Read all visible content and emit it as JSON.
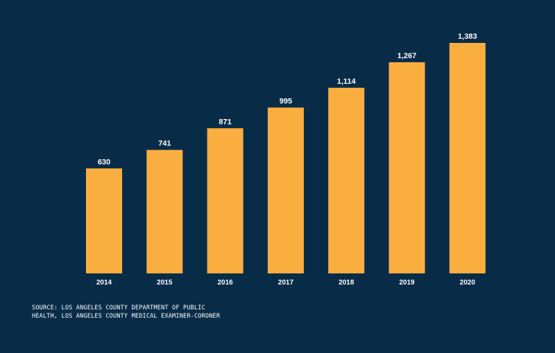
{
  "colors": {
    "background": "#082c48",
    "bar": "#fbae40",
    "text": "#ffffff"
  },
  "chart_data": {
    "type": "bar",
    "categories": [
      "2014",
      "2015",
      "2016",
      "2017",
      "2018",
      "2019",
      "2020"
    ],
    "values": [
      630,
      741,
      871,
      995,
      1114,
      1267,
      1383
    ],
    "value_labels": [
      "630",
      "741",
      "871",
      "995",
      "1,114",
      "1,267",
      "1,383"
    ],
    "ylim": [
      0,
      1383
    ],
    "grid": false,
    "legend": "none"
  },
  "source": {
    "line1": "SOURCE: LOS ANGELES COUNTY DEPARTMENT OF PUBLIC",
    "line2": "HEALTH, LOS ANGELES COUNTY MEDICAL EXAMINER-CORONER"
  }
}
